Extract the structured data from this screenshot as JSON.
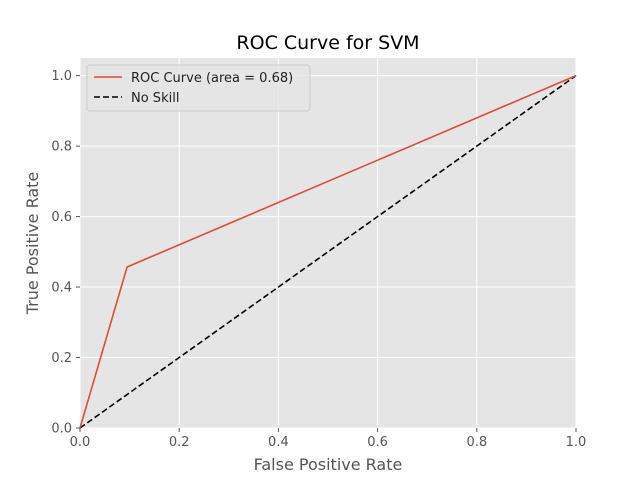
{
  "chart_data": {
    "type": "line",
    "title": "ROC Curve for SVM",
    "xlabel": "False Positive Rate",
    "ylabel": "True Positive Rate",
    "xlim": [
      0.0,
      1.0
    ],
    "ylim": [
      0.0,
      1.05
    ],
    "xticks": [
      0.0,
      0.2,
      0.4,
      0.6,
      0.8,
      1.0
    ],
    "yticks": [
      0.0,
      0.2,
      0.4,
      0.6,
      0.8,
      1.0
    ],
    "xtick_labels": [
      "0.0",
      "0.2",
      "0.4",
      "0.6",
      "0.8",
      "1.0"
    ],
    "ytick_labels": [
      "0.0",
      "0.2",
      "0.4",
      "0.6",
      "0.8",
      "1.0"
    ],
    "grid": true,
    "legend_position": "top-left",
    "series": [
      {
        "name": "ROC Curve (area = 0.68)",
        "color": "#E24A33",
        "style": "solid",
        "x": [
          0.0,
          0.095,
          1.0
        ],
        "y": [
          0.0,
          0.457,
          1.0
        ]
      },
      {
        "name": "No Skill",
        "color": "#000000",
        "style": "dashed",
        "x": [
          0.0,
          1.0
        ],
        "y": [
          0.0,
          1.0
        ]
      }
    ],
    "colors": {
      "plot_background": "#E5E5E5",
      "grid": "#FFFFFF"
    }
  }
}
